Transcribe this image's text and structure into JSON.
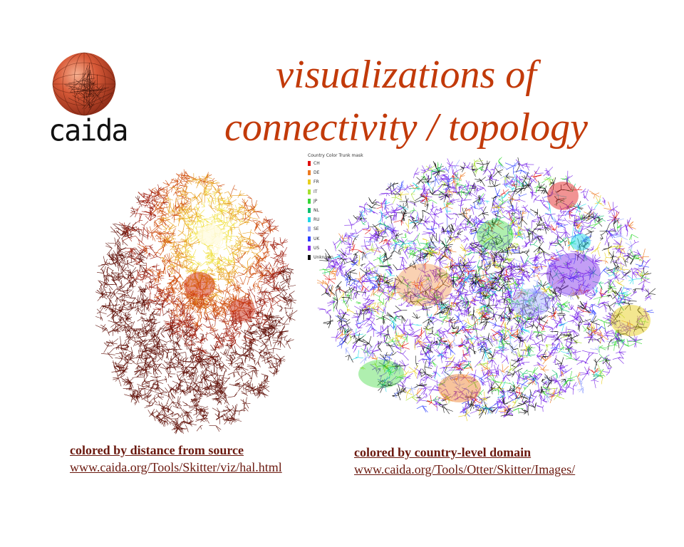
{
  "logo": {
    "text": "caida"
  },
  "title": {
    "line1": "visualizations of",
    "line2": "connectivity / topology"
  },
  "legend": {
    "title": "Country Color Trunk mask",
    "items": [
      {
        "code": "CH",
        "color": "#e01010"
      },
      {
        "code": "DE",
        "color": "#ee7b22"
      },
      {
        "code": "FR",
        "color": "#e8d020"
      },
      {
        "code": "IT",
        "color": "#a8e030"
      },
      {
        "code": "JP",
        "color": "#38d838"
      },
      {
        "code": "NL",
        "color": "#10c070"
      },
      {
        "code": "RU",
        "color": "#20d8e8"
      },
      {
        "code": "SE",
        "color": "#9aa8ff"
      },
      {
        "code": "UK",
        "color": "#3040ff"
      },
      {
        "code": "US",
        "color": "#7a28e8"
      },
      {
        "code": "Unknown",
        "color": "#111111"
      }
    ]
  },
  "captions": {
    "left": {
      "heading": "colored by distance from source",
      "url": "www.caida.org/Tools/Skitter/viz/hal.html"
    },
    "right": {
      "heading": "colored by country-level domain",
      "url": "www.caida.org/Tools/Otter/Skitter/Images/"
    }
  },
  "colors": {
    "title": "#c23a0a",
    "caption": "#6b1a10",
    "distance_palette": [
      "#fff8c0",
      "#f0e040",
      "#e8a020",
      "#d05010",
      "#a02010",
      "#601008"
    ]
  }
}
